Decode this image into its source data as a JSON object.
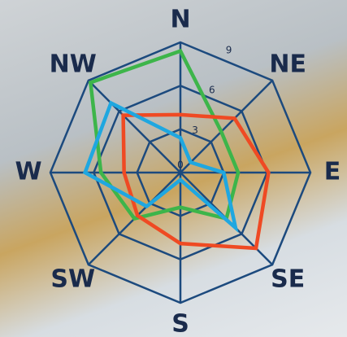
{
  "chart_data": {
    "type": "radar",
    "categories": [
      "N",
      "NE",
      "E",
      "SE",
      "S",
      "SW",
      "W",
      "NW"
    ],
    "rlim": [
      0,
      9
    ],
    "rticks": [
      0,
      3,
      6,
      9
    ],
    "grid_color": "#1c4a7e",
    "series": [
      {
        "color": "#3db54a",
        "values": [
          8.4,
          4.0,
          4.0,
          4.5,
          2.4,
          4.5,
          5.5,
          8.8
        ]
      },
      {
        "color": "#ef4a23",
        "values": [
          4.0,
          5.3,
          6.1,
          7.4,
          4.9,
          4.2,
          3.9,
          5.6
        ]
      },
      {
        "color": "#1fa7e0",
        "values": [
          2.4,
          1.0,
          3.0,
          5.4,
          0.5,
          3.3,
          6.6,
          6.8
        ]
      }
    ]
  }
}
